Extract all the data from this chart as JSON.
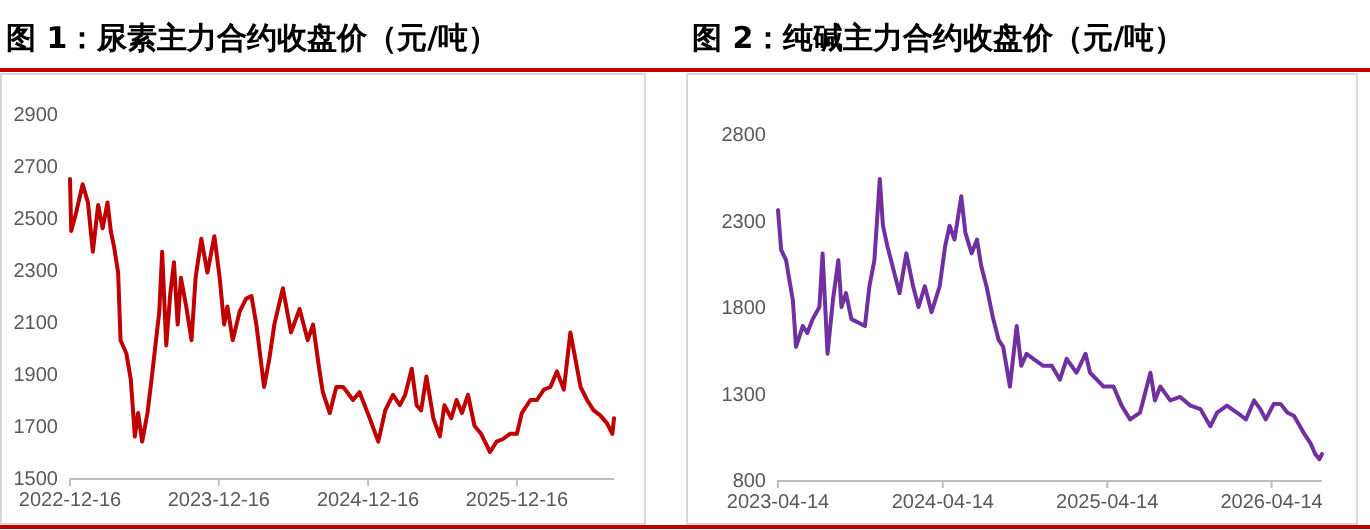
{
  "chart_data": [
    {
      "type": "line",
      "title": "图 1：尿素主力合约收盘价（元/吨）",
      "xlim": [
        "2022-12-16",
        "2026-08-11"
      ],
      "xticks": [
        "2022-12-16",
        "2023-12-16",
        "2024-12-16",
        "2025-12-16"
      ],
      "ylim": [
        1500,
        2900
      ],
      "yticks": [
        1500,
        1700,
        1900,
        2100,
        2300,
        2500,
        2700,
        2900
      ],
      "grid": false,
      "x": [
        "2022-12-16",
        "2022-12-19",
        "2022-12-31",
        "2023-01-16",
        "2023-01-29",
        "2023-02-10",
        "2023-02-23",
        "2023-03-06",
        "2023-03-18",
        "2023-03-26",
        "2023-04-03",
        "2023-04-13",
        "2023-04-19",
        "2023-05-03",
        "2023-05-14",
        "2023-05-24",
        "2023-06-01",
        "2023-06-11",
        "2023-06-24",
        "2023-07-04",
        "2023-07-15",
        "2023-07-23",
        "2023-07-30",
        "2023-08-09",
        "2023-08-19",
        "2023-08-28",
        "2023-09-06",
        "2023-09-14",
        "2023-09-27",
        "2023-10-10",
        "2023-10-20",
        "2023-11-03",
        "2023-11-18",
        "2023-12-05",
        "2023-12-18",
        "2023-12-29",
        "2024-01-06",
        "2024-01-19",
        "2024-02-05",
        "2024-02-21",
        "2024-03-05",
        "2024-03-17",
        "2024-04-05",
        "2024-04-18",
        "2024-04-30",
        "2024-05-21",
        "2024-06-10",
        "2024-07-01",
        "2024-07-21",
        "2024-08-03",
        "2024-08-19",
        "2024-08-27",
        "2024-09-13",
        "2024-09-29",
        "2024-10-16",
        "2024-11-09",
        "2024-11-25",
        "2024-12-20",
        "2025-01-10",
        "2025-01-27",
        "2025-02-15",
        "2025-03-04",
        "2025-03-17",
        "2025-04-02",
        "2025-04-14",
        "2025-04-25",
        "2025-05-08",
        "2025-05-25",
        "2025-06-10",
        "2025-06-21",
        "2025-07-08",
        "2025-07-21",
        "2025-08-03",
        "2025-08-18",
        "2025-09-03",
        "2025-09-19",
        "2025-10-11",
        "2025-10-27",
        "2025-11-12",
        "2025-11-29",
        "2025-12-16",
        "2025-12-28",
        "2026-01-18",
        "2026-02-03",
        "2026-02-20",
        "2026-03-08",
        "2026-03-24",
        "2026-04-10",
        "2026-04-26",
        "2026-05-08",
        "2026-05-21",
        "2026-06-06",
        "2026-06-22",
        "2026-07-09",
        "2026-07-25",
        "2026-08-07",
        "2026-08-11"
      ],
      "series": [
        {
          "color": "#c00000",
          "values": [
            2650,
            2450,
            2520,
            2630,
            2560,
            2370,
            2550,
            2460,
            2560,
            2450,
            2390,
            2290,
            2030,
            1980,
            1880,
            1660,
            1750,
            1640,
            1750,
            1880,
            2030,
            2140,
            2370,
            2010,
            2210,
            2330,
            2090,
            2270,
            2160,
            2030,
            2270,
            2420,
            2290,
            2430,
            2270,
            2090,
            2160,
            2030,
            2140,
            2190,
            2200,
            2090,
            1850,
            1960,
            2090,
            2230,
            2060,
            2150,
            2030,
            2090,
            1910,
            1830,
            1750,
            1850,
            1850,
            1800,
            1830,
            1730,
            1640,
            1760,
            1820,
            1780,
            1820,
            1920,
            1780,
            1760,
            1890,
            1730,
            1660,
            1780,
            1730,
            1800,
            1750,
            1820,
            1700,
            1670,
            1600,
            1640,
            1650,
            1670,
            1670,
            1750,
            1800,
            1800,
            1840,
            1850,
            1910,
            1840,
            2060,
            1960,
            1850,
            1800,
            1760,
            1740,
            1710,
            1670,
            1730
          ]
        }
      ]
    },
    {
      "type": "line",
      "title": "图 2：纯碱主力合约收盘价（元/吨）",
      "xlim": [
        "2023-04-14",
        "2026-08-04"
      ],
      "xticks": [
        "2023-04-14",
        "2024-04-14",
        "2025-04-14",
        "2026-04-14"
      ],
      "ylim": [
        800,
        2800
      ],
      "yticks": [
        800,
        1300,
        1800,
        2300,
        2800
      ],
      "grid": false,
      "x": [
        "2023-04-14",
        "2023-04-21",
        "2023-05-02",
        "2023-05-09",
        "2023-05-17",
        "2023-05-24",
        "2023-06-08",
        "2023-06-18",
        "2023-06-30",
        "2023-07-15",
        "2023-07-22",
        "2023-08-02",
        "2023-08-14",
        "2023-08-26",
        "2023-09-02",
        "2023-09-12",
        "2023-09-24",
        "2023-10-09",
        "2023-10-24",
        "2023-11-03",
        "2023-11-14",
        "2023-11-26",
        "2023-12-03",
        "2023-12-13",
        "2023-12-28",
        "2024-01-09",
        "2024-01-24",
        "2024-02-08",
        "2024-02-20",
        "2024-03-05",
        "2024-03-20",
        "2024-04-07",
        "2024-04-19",
        "2024-04-29",
        "2024-05-10",
        "2024-05-25",
        "2024-06-03",
        "2024-06-17",
        "2024-06-29",
        "2024-07-08",
        "2024-07-20",
        "2024-08-04",
        "2024-08-16",
        "2024-08-26",
        "2024-09-10",
        "2024-09-25",
        "2024-10-05",
        "2024-10-17",
        "2024-11-01",
        "2024-11-23",
        "2024-12-12",
        "2024-12-30",
        "2025-01-14",
        "2025-02-05",
        "2025-02-25",
        "2025-03-07",
        "2025-03-22",
        "2025-04-06",
        "2025-04-28",
        "2025-05-16",
        "2025-06-04",
        "2025-06-26",
        "2025-07-19",
        "2025-07-29",
        "2025-08-10",
        "2025-09-01",
        "2025-09-23",
        "2025-10-16",
        "2025-11-07",
        "2025-11-29",
        "2025-12-14",
        "2026-01-05",
        "2026-01-27",
        "2026-02-16",
        "2026-03-06",
        "2026-03-20",
        "2026-04-01",
        "2026-04-19",
        "2026-05-04",
        "2026-05-19",
        "2026-06-03",
        "2026-06-25",
        "2026-07-10",
        "2026-07-20",
        "2026-07-29",
        "2026-08-04"
      ],
      "series": [
        {
          "color": "#7030a0",
          "values": [
            2360,
            2130,
            2070,
            1960,
            1840,
            1570,
            1690,
            1650,
            1730,
            1800,
            2110,
            1530,
            1840,
            2070,
            1800,
            1880,
            1730,
            1710,
            1690,
            1920,
            2070,
            2540,
            2270,
            2150,
            2000,
            1880,
            2110,
            1920,
            1800,
            1920,
            1770,
            1920,
            2150,
            2270,
            2190,
            2440,
            2230,
            2110,
            2190,
            2040,
            1920,
            1730,
            1610,
            1570,
            1340,
            1690,
            1460,
            1530,
            1500,
            1460,
            1460,
            1380,
            1500,
            1420,
            1530,
            1420,
            1380,
            1340,
            1340,
            1230,
            1150,
            1190,
            1420,
            1260,
            1340,
            1260,
            1280,
            1230,
            1210,
            1110,
            1190,
            1230,
            1190,
            1150,
            1260,
            1210,
            1150,
            1240,
            1240,
            1190,
            1170,
            1070,
            1010,
            950,
            920,
            950
          ]
        }
      ]
    }
  ]
}
